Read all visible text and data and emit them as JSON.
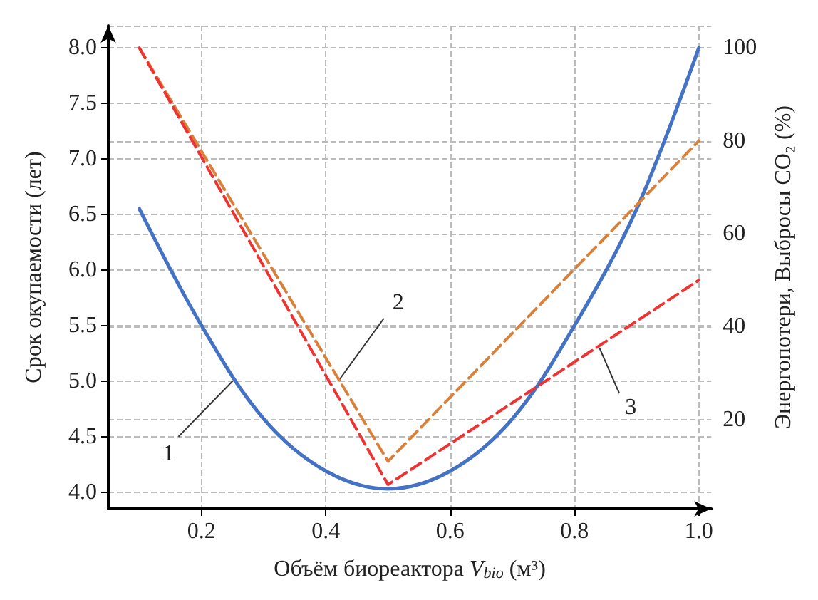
{
  "chart_data": {
    "type": "line",
    "xlabel": "Объём биореактора V$_{bio}$ (м³)",
    "ylabel": "Срок окупаемости (лет)",
    "y2label": "Энергопотери, Выбросы CO₂ (%)",
    "xlim": [
      0.05,
      1.02
    ],
    "xticks": [
      0.2,
      0.4,
      0.6,
      0.8,
      {
        "value": 1,
        "label": "1.0"
      }
    ],
    "ylim": [
      3.85,
      8.2
    ],
    "yticks": [
      {
        "value": 4,
        "label": "4.0"
      },
      4.5,
      {
        "value": 5,
        "label": "5.0"
      },
      5.5,
      {
        "value": 6,
        "label": "6.0"
      },
      6.5,
      {
        "value": 7,
        "label": "7.0"
      },
      7.5,
      {
        "value": 8,
        "label": "8.0"
      }
    ],
    "y2lim": [
      0.8,
      104.8
    ],
    "y2ticks": [
      20,
      40,
      60,
      80,
      100
    ],
    "grid": true,
    "marker": "none",
    "series": [
      {
        "color": "#4472c4",
        "line_style": "solid",
        "x": [
          0.1,
          0.2,
          0.3,
          0.4,
          0.5,
          0.6,
          0.7,
          0.8,
          0.9,
          1.0
        ],
        "values": [
          6.55,
          5.5,
          4.66,
          4.19,
          4.03,
          4.19,
          4.66,
          5.5,
          6.55,
          8.0
        ]
      },
      {
        "color": "#d9813a",
        "line_style": "dashed",
        "axis": "y2",
        "x": [
          0.1,
          0.5,
          1.0
        ],
        "values": [
          100,
          11,
          80
        ]
      },
      {
        "color": "#ee3333",
        "line_style": "dashed",
        "axis": "y2",
        "x": [
          0.1,
          0.5,
          1.0
        ],
        "values": [
          100,
          6,
          50
        ]
      }
    ],
    "annotations": [
      {
        "text": "1",
        "x": 0.25,
        "y": 5.0
      },
      {
        "text": "2",
        "x": 0.42,
        "y": 5.0
      },
      {
        "text": "3",
        "x": 0.84,
        "y": 5.3
      }
    ]
  }
}
